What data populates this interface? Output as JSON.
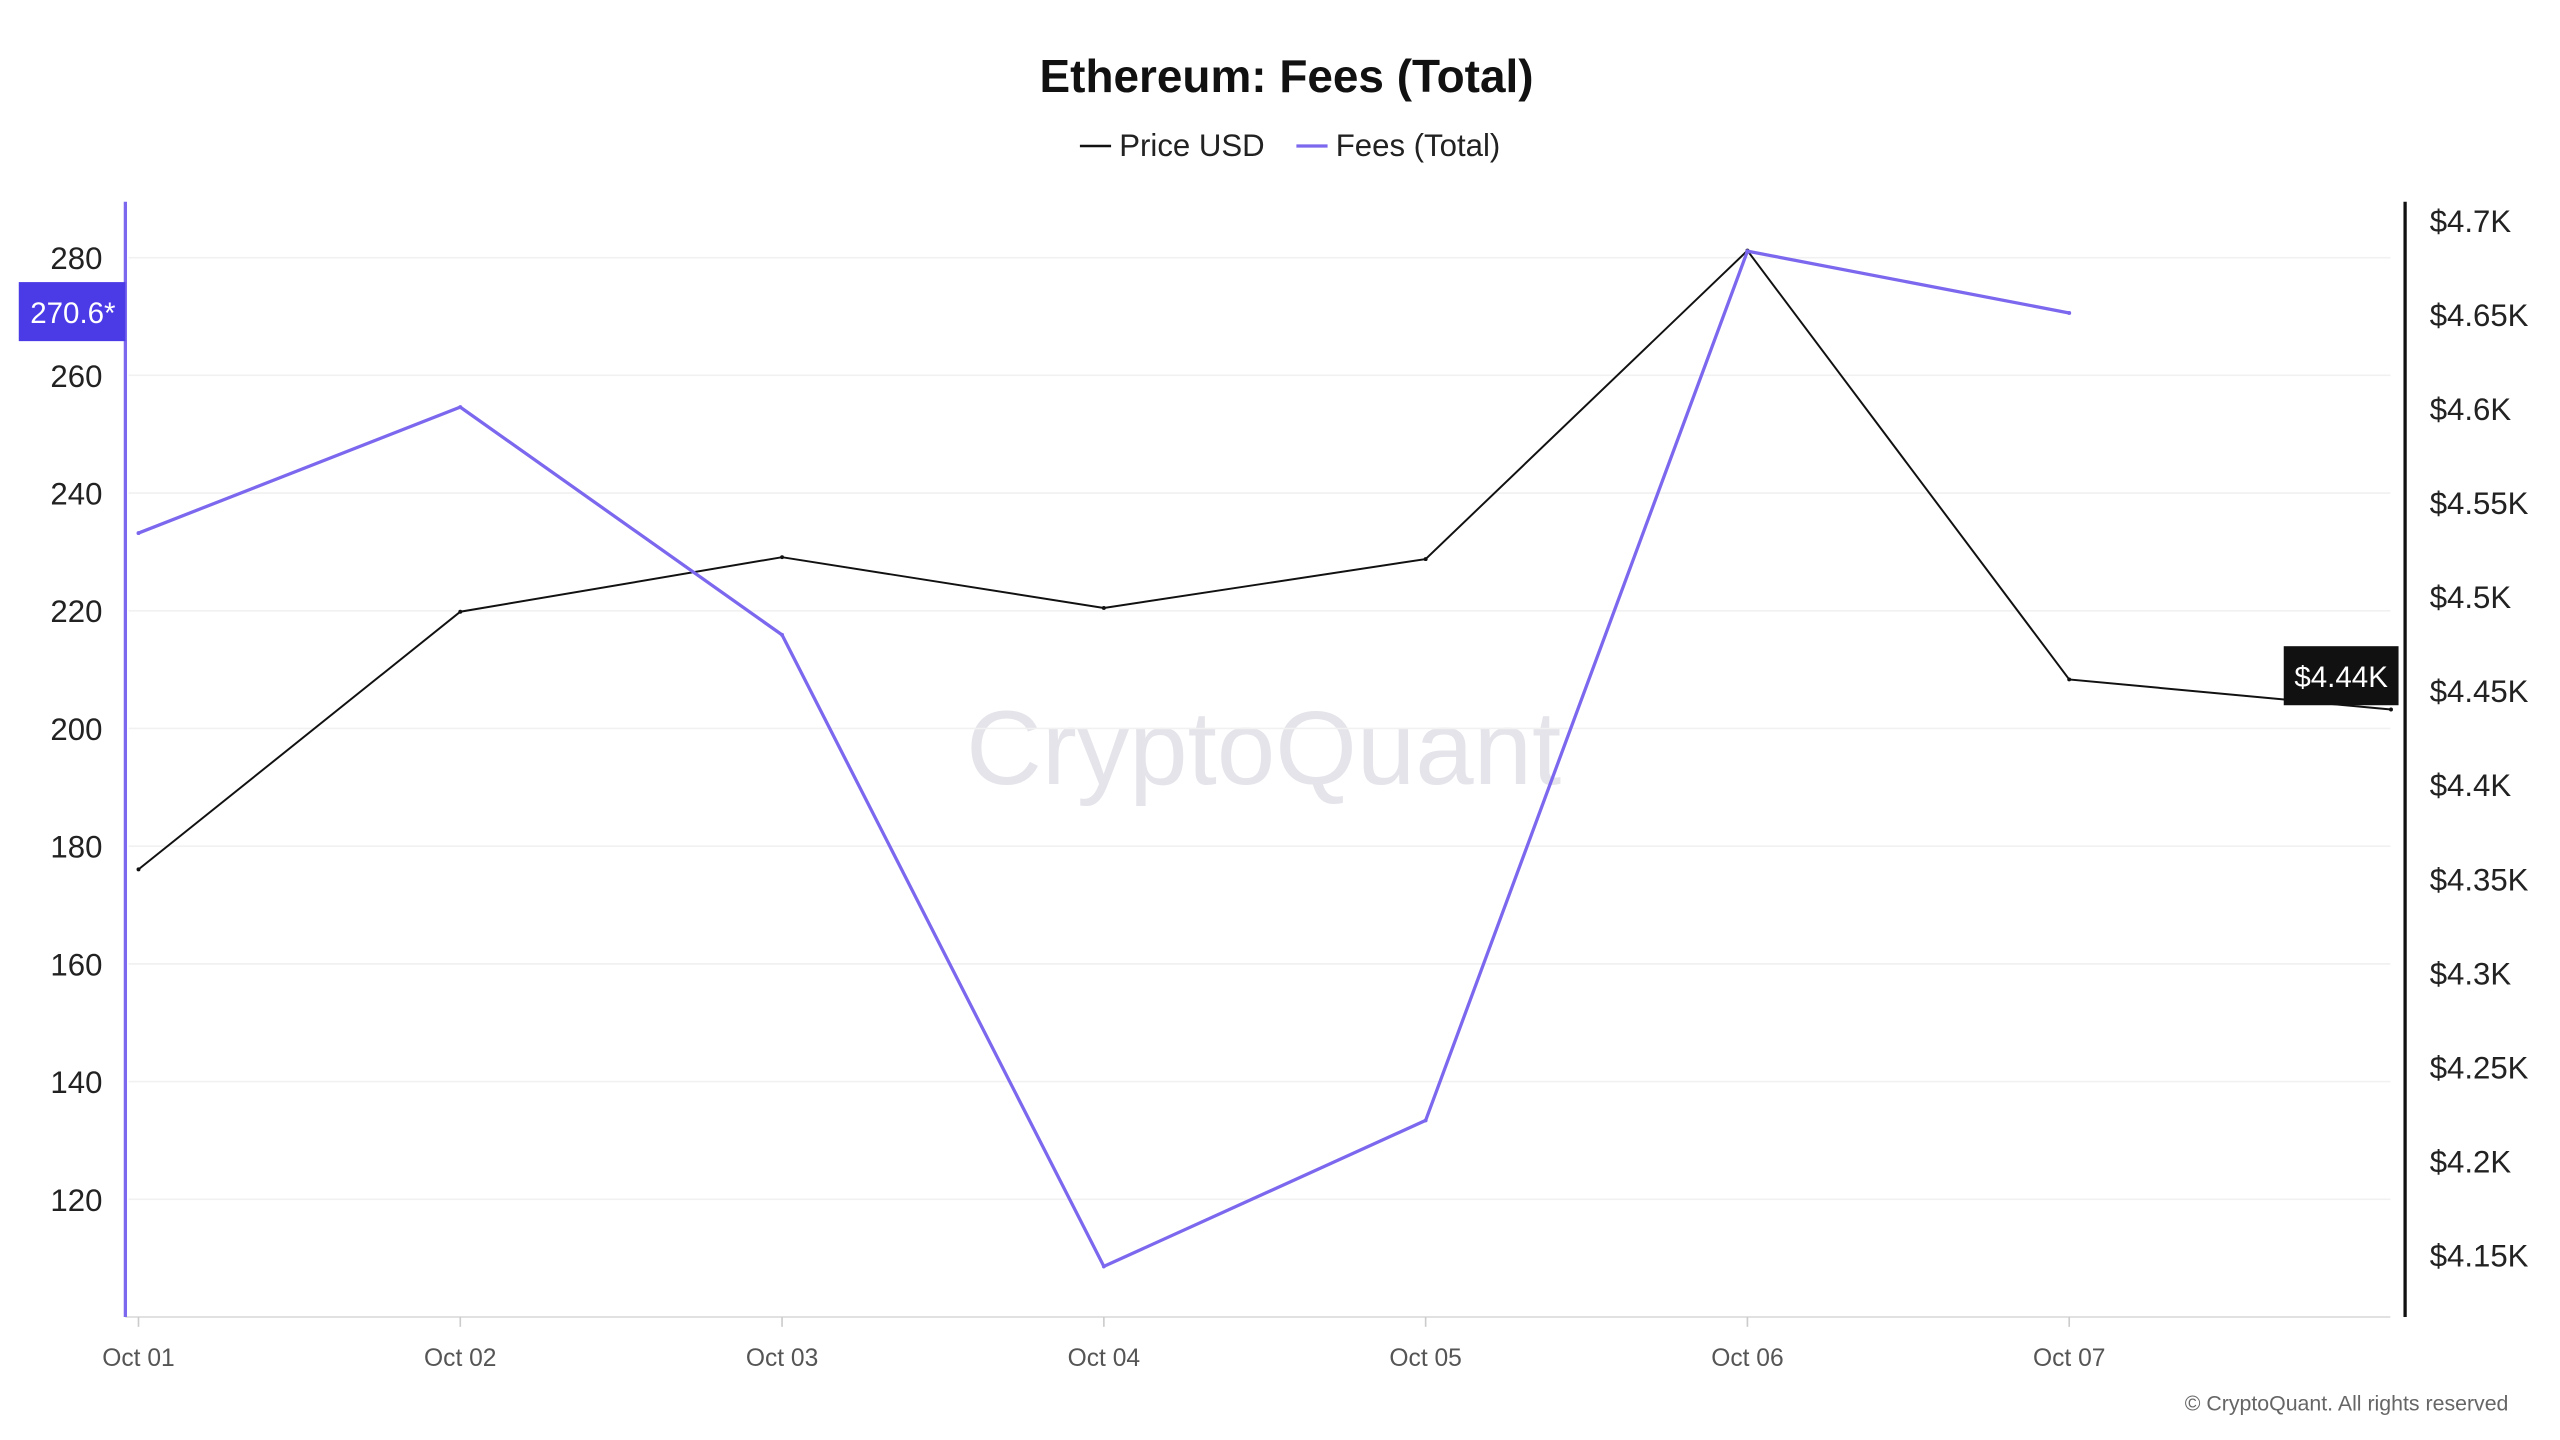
{
  "chart_data": {
    "type": "line",
    "title": "Ethereum: Fees (Total)",
    "categories": [
      "Oct 01",
      "Oct 02",
      "Oct 03",
      "Oct 04",
      "Oct 05",
      "Oct 06",
      "Oct 07",
      ""
    ],
    "x_tick_labels": [
      "Oct 01",
      "Oct 02",
      "Oct 03",
      "Oct 04",
      "Oct 05",
      "Oct 06",
      "Oct 07"
    ],
    "legend_position": "top-center",
    "grid": true,
    "series": [
      {
        "name": "Price USD",
        "axis": "right",
        "color": "#111111",
        "values": [
          4355,
          4492,
          4521,
          4494,
          4520,
          4684,
          4456,
          4440
        ]
      },
      {
        "name": "Fees (Total)",
        "axis": "left",
        "color": "#7b68ee",
        "values": [
          233.2,
          254.6,
          215.9,
          108.6,
          133.4,
          281.1,
          270.6,
          null
        ]
      }
    ],
    "left_axis": {
      "ylim": [
        100,
        289.5
      ],
      "ticks": [
        120,
        140,
        160,
        180,
        200,
        220,
        240,
        260,
        280
      ],
      "tick_labels": [
        "120",
        "140",
        "160",
        "180",
        "200",
        "220",
        "240",
        "260",
        "280"
      ],
      "current_label": "270.6*",
      "color": "#7b68ee",
      "label_bg": "#4b3be6"
    },
    "right_axis": {
      "ylim": [
        4117,
        4710
      ],
      "ticks": [
        4150,
        4200,
        4250,
        4300,
        4350,
        4400,
        4450,
        4500,
        4550,
        4600,
        4650,
        4700
      ],
      "tick_labels": [
        "$4.15K",
        "$4.2K",
        "$4.25K",
        "$4.3K",
        "$4.35K",
        "$4.4K",
        "$4.45K",
        "$4.5K",
        "$4.55K",
        "$4.6K",
        "$4.65K",
        "$4.7K"
      ],
      "current_label": "$4.44K",
      "label_bg": "#111111"
    },
    "watermark": "CryptoQuant",
    "copyright": "© CryptoQuant. All rights reserved"
  }
}
